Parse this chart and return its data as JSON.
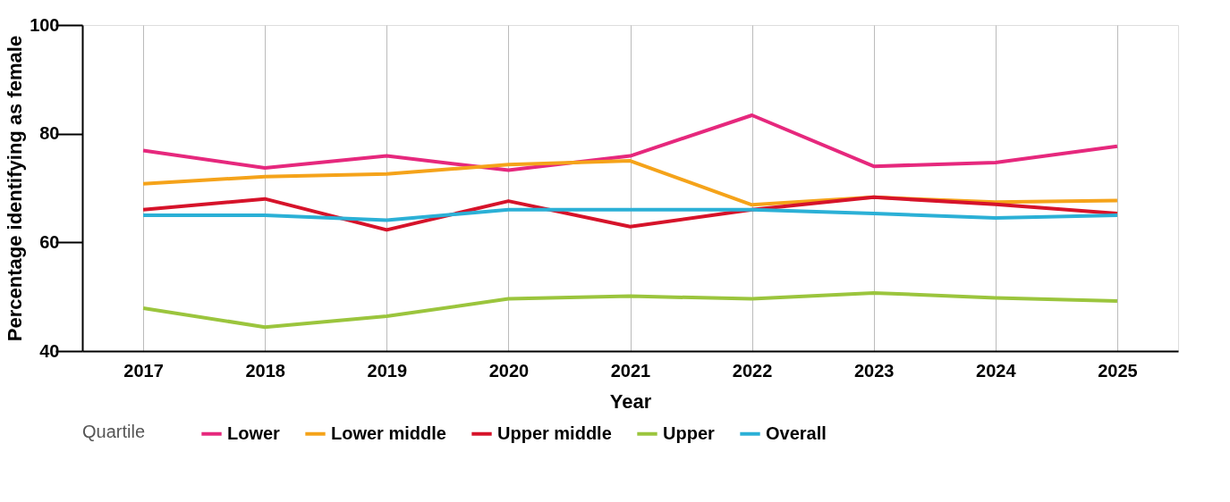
{
  "chart_data": {
    "type": "line",
    "xlabel": "Year",
    "ylabel": "Percentage identifying as female",
    "legend_title": "Quartile",
    "categories": [
      "2017",
      "2018",
      "2019",
      "2020",
      "2021",
      "2022",
      "2023",
      "2024",
      "2025"
    ],
    "series": [
      {
        "name": "Lower",
        "color": "#e6287d",
        "values": [
          76.9,
          73.7,
          75.9,
          73.3,
          75.9,
          83.4,
          74.0,
          74.7,
          77.7
        ]
      },
      {
        "name": "Lower middle",
        "color": "#f5a31a",
        "values": [
          70.8,
          72.1,
          72.6,
          74.3,
          75.0,
          66.9,
          68.3,
          67.4,
          67.7
        ]
      },
      {
        "name": "Upper middle",
        "color": "#d6132a",
        "values": [
          66.0,
          68.0,
          62.3,
          67.6,
          62.9,
          66.0,
          68.3,
          67.0,
          65.3
        ]
      },
      {
        "name": "Upper",
        "color": "#9bc53d",
        "values": [
          47.9,
          44.4,
          46.4,
          49.6,
          50.1,
          49.6,
          50.7,
          49.8,
          49.2
        ]
      },
      {
        "name": "Overall",
        "color": "#2bb0d6",
        "values": [
          65.0,
          65.0,
          64.1,
          66.0,
          66.0,
          66.0,
          65.3,
          64.5,
          65.0
        ]
      }
    ],
    "ylim": [
      40,
      100
    ],
    "yticks": [
      40,
      60,
      80,
      100
    ],
    "grid": "x",
    "legend": "bottom",
    "marker": "none",
    "line_style": "solid"
  }
}
